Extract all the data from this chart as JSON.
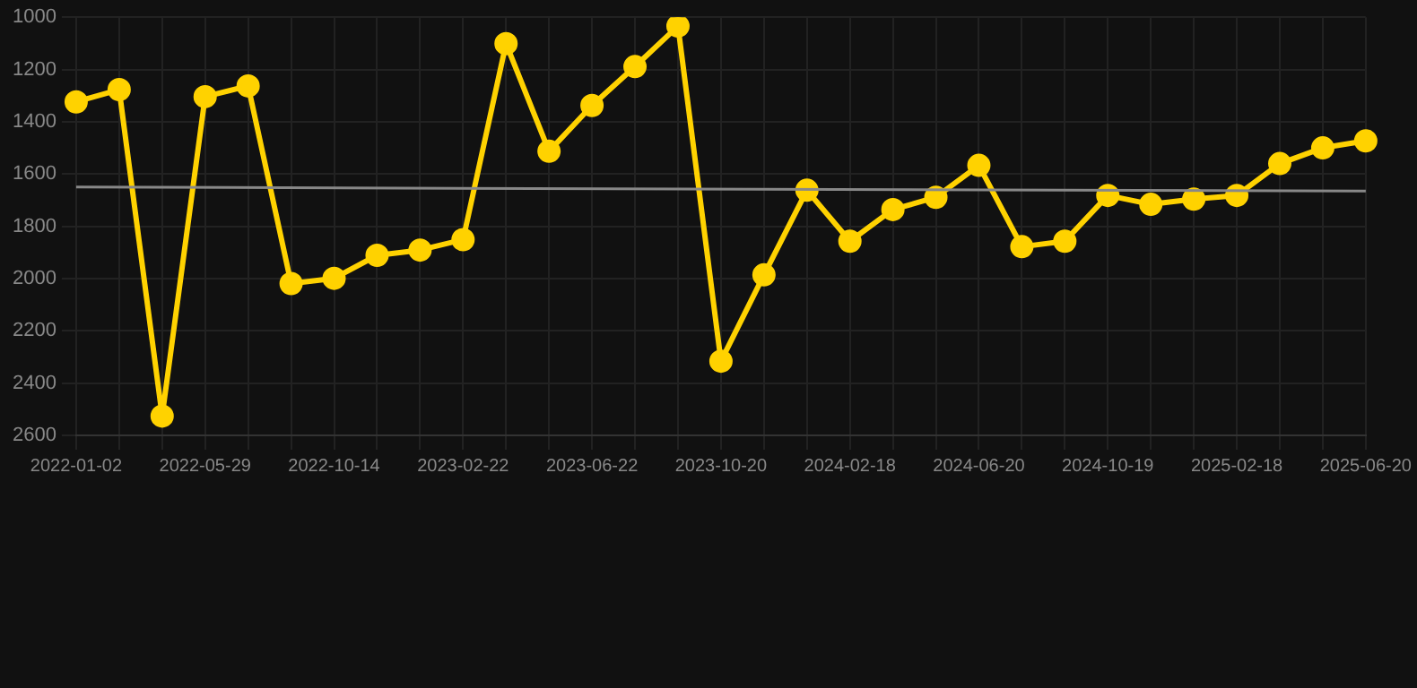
{
  "chart_data": {
    "type": "line",
    "categories": [
      "2022-01-02",
      null,
      null,
      "2022-05-29",
      null,
      null,
      "2022-10-14",
      null,
      null,
      "2023-02-22",
      null,
      null,
      "2023-06-22",
      null,
      null,
      "2023-10-20",
      null,
      null,
      "2024-02-18",
      null,
      null,
      "2024-06-20",
      null,
      null,
      "2024-10-19",
      null,
      null,
      "2025-02-18",
      null,
      null,
      "2025-06-20"
    ],
    "series": [
      {
        "color": "#ffd200",
        "marker": "circle",
        "values": [
          1324,
          1277,
          2526,
          1304,
          1263,
          2019,
          1999,
          1911,
          1891,
          1851,
          1101,
          1513,
          1338,
          1189,
          1034,
          2316,
          1986,
          1662,
          1857,
          1736,
          1689,
          1567,
          1878,
          1857,
          1682,
          1716,
          1696,
          1682,
          1560,
          1500,
          1473
        ]
      },
      {
        "color": "#888888",
        "marker": "none",
        "values": [
          1650,
          null,
          null,
          null,
          null,
          null,
          null,
          null,
          null,
          null,
          null,
          null,
          null,
          null,
          null,
          null,
          null,
          null,
          null,
          null,
          null,
          null,
          null,
          null,
          null,
          null,
          null,
          null,
          null,
          null,
          1665
        ]
      }
    ],
    "ylim": [
      2600,
      1000
    ],
    "yticks": [
      1000,
      1200,
      1400,
      1600,
      1800,
      2000,
      2200,
      2400,
      2600
    ],
    "grid": true,
    "legend": false
  }
}
